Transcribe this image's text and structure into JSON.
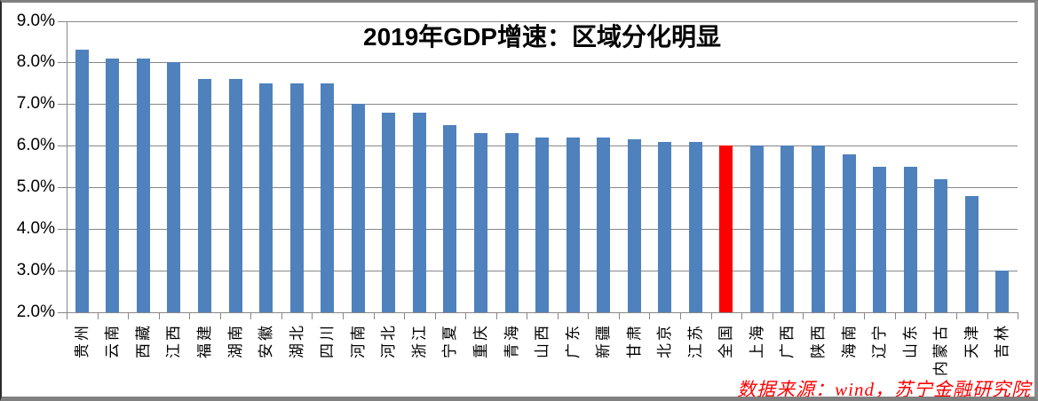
{
  "chart_data": {
    "type": "bar",
    "title": "2019年GDP增速：区域分化明显",
    "source_note": "数据来源：wind，苏宁金融研究院",
    "categories": [
      "贵州",
      "云南",
      "西藏",
      "江西",
      "福建",
      "湖南",
      "安徽",
      "湖北",
      "四川",
      "河南",
      "河北",
      "浙江",
      "宁夏",
      "重庆",
      "青海",
      "山西",
      "广东",
      "新疆",
      "甘肃",
      "北京",
      "江苏",
      "全国",
      "上海",
      "广西",
      "陕西",
      "海南",
      "辽宁",
      "山东",
      "内蒙古",
      "天津",
      "吉林"
    ],
    "values": [
      8.3,
      8.1,
      8.1,
      8.0,
      7.6,
      7.6,
      7.5,
      7.5,
      7.5,
      7.0,
      6.8,
      6.8,
      6.5,
      6.3,
      6.3,
      6.2,
      6.2,
      6.2,
      6.15,
      6.1,
      6.1,
      6.0,
      6.0,
      6.0,
      6.0,
      5.8,
      5.5,
      5.5,
      5.2,
      4.8,
      3.0
    ],
    "unit": "%",
    "highlight_category": "全国",
    "ylim": [
      2.0,
      9.0
    ],
    "ytick_step": 1.0,
    "y_tick_labels": [
      "9.0%",
      "8.0%",
      "7.0%",
      "6.0%",
      "5.0%",
      "4.0%",
      "3.0%",
      "2.0%"
    ],
    "grid": true,
    "legend_position": "none",
    "xlabel": "",
    "ylabel": "",
    "colors": {
      "bar": "#4F81BD",
      "highlight_bar": "#FF0000",
      "gridline": "#878787",
      "axis": "#878787",
      "title_text": "#000000",
      "axis_text": "#000000",
      "source_text": "#FF0000",
      "background": "#FFFFFF"
    }
  }
}
